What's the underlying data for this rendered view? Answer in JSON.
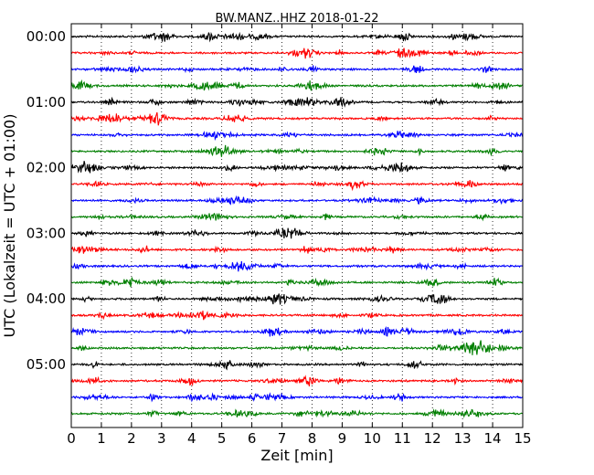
{
  "chart_data": {
    "type": "line",
    "title": "BW.MANZ..HHZ 2018-01-22",
    "xlabel": "Zeit  [min]",
    "ylabel": "UTC (Lokalzeit = UTC + 01:00)",
    "xlim": [
      0,
      15
    ],
    "x_ticks": [
      "0",
      "1",
      "2",
      "3",
      "4",
      "5",
      "6",
      "7",
      "8",
      "9",
      "10",
      "11",
      "12",
      "13",
      "14",
      "15"
    ],
    "y_ticks": [
      "00:00",
      "01:00",
      "02:00",
      "03:00",
      "04:00",
      "05:00"
    ],
    "grid": "vertical dotted lines at each minute",
    "trace_colors": [
      "#000000",
      "#ff0000",
      "#0000ff",
      "#007f00"
    ],
    "traces": [
      {
        "start": "00:00",
        "color": "#000000"
      },
      {
        "start": "00:15",
        "color": "#ff0000"
      },
      {
        "start": "00:30",
        "color": "#0000ff"
      },
      {
        "start": "00:45",
        "color": "#007f00"
      },
      {
        "start": "01:00",
        "color": "#000000"
      },
      {
        "start": "01:15",
        "color": "#ff0000"
      },
      {
        "start": "01:30",
        "color": "#0000ff"
      },
      {
        "start": "01:45",
        "color": "#007f00"
      },
      {
        "start": "02:00",
        "color": "#000000"
      },
      {
        "start": "02:15",
        "color": "#ff0000"
      },
      {
        "start": "02:30",
        "color": "#0000ff"
      },
      {
        "start": "02:45",
        "color": "#007f00"
      },
      {
        "start": "03:00",
        "color": "#000000"
      },
      {
        "start": "03:15",
        "color": "#ff0000"
      },
      {
        "start": "03:30",
        "color": "#0000ff"
      },
      {
        "start": "03:45",
        "color": "#007f00"
      },
      {
        "start": "04:00",
        "color": "#000000"
      },
      {
        "start": "04:15",
        "color": "#ff0000"
      },
      {
        "start": "04:30",
        "color": "#0000ff"
      },
      {
        "start": "04:45",
        "color": "#007f00"
      },
      {
        "start": "05:00",
        "color": "#000000"
      },
      {
        "start": "05:15",
        "color": "#ff0000"
      },
      {
        "start": "05:30",
        "color": "#0000ff"
      },
      {
        "start": "05:45",
        "color": "#007f00"
      }
    ]
  }
}
